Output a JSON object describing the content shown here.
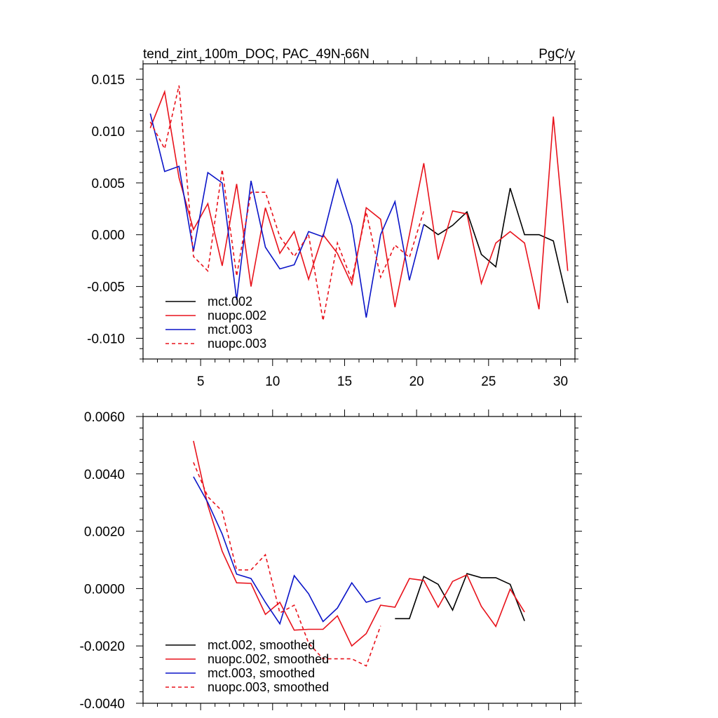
{
  "chart_data": [
    {
      "type": "line",
      "title": "tend_zint_100m_DOC, PAC_49N-66N",
      "units": "PgC/y",
      "xlim": [
        1,
        31
      ],
      "ylim": [
        -0.012,
        0.0165
      ],
      "x_ticks": [
        5,
        10,
        15,
        20,
        25,
        30
      ],
      "x_tick_labels": [
        "5",
        "10",
        "15",
        "20",
        "25",
        "30"
      ],
      "y_ticks": [
        0.015,
        0.01,
        0.005,
        0.0,
        -0.005,
        -0.01
      ],
      "y_tick_labels": [
        "0.015",
        "0.010",
        "0.005",
        "0.000",
        "-0.005",
        "-0.010"
      ],
      "legend_position": "bottom-left",
      "series": [
        {
          "name": "mct.002",
          "color": "#000000",
          "dash": "solid",
          "x_start": 20.5,
          "values": [
            0.001,
            0.0,
            0.0009,
            0.0022,
            -0.0019,
            -0.0031,
            0.0045,
            0.0,
            0.0,
            -0.0006,
            -0.0066
          ]
        },
        {
          "name": "nuopc.002",
          "color": "#e8121b",
          "dash": "solid",
          "x_start": 1.5,
          "values": [
            0.0103,
            0.0138,
            0.0055,
            0.0005,
            0.003,
            -0.003,
            0.0049,
            -0.005,
            0.0026,
            -0.0018,
            0.0003,
            -0.0043,
            0.0,
            -0.0018,
            -0.0048,
            0.0026,
            0.0015,
            -0.007,
            0.0,
            0.0069,
            -0.0024,
            0.0023,
            0.002,
            -0.0047,
            -0.0008,
            0.0003,
            -0.0008,
            -0.0072,
            0.0114,
            -0.0035
          ]
        },
        {
          "name": "mct.003",
          "color": "#0a14c8",
          "dash": "solid",
          "x_start": 1.5,
          "values": [
            0.0117,
            0.0061,
            0.0066,
            -0.0016,
            0.006,
            0.005,
            -0.0063,
            0.0052,
            -0.0012,
            -0.0033,
            -0.0029,
            0.0003,
            -0.0002,
            0.0053,
            0.0009,
            -0.008,
            0.0,
            0.0032,
            -0.0044,
            0.001
          ]
        },
        {
          "name": "nuopc.003",
          "color": "#e8121b",
          "dash": "dashed",
          "x_start": 1.5,
          "values": [
            0.0109,
            0.0083,
            0.0144,
            -0.0021,
            -0.0035,
            0.0063,
            -0.004,
            0.0041,
            0.0041,
            -0.0002,
            -0.0021,
            0.0,
            -0.0083,
            -0.0008,
            -0.0044,
            0.0022,
            -0.0041,
            -0.001,
            -0.0022,
            0.0023
          ]
        }
      ]
    },
    {
      "type": "line",
      "xlim": [
        1,
        31
      ],
      "ylim": [
        -0.004,
        0.006
      ],
      "y_ticks": [
        0.006,
        0.004,
        0.002,
        0.0,
        -0.002,
        -0.004
      ],
      "y_tick_labels": [
        "0.0060",
        "0.0040",
        "0.0020",
        "0.0000",
        "-0.0020",
        "-0.0040"
      ],
      "legend_position": "bottom-left",
      "series": [
        {
          "name": "mct.002, smoothed",
          "color": "#000000",
          "dash": "solid",
          "x_start": 18.5,
          "values": [
            -0.00105,
            -0.00105,
            0.00042,
            0.00015,
            -0.00075,
            0.00052,
            0.00038,
            0.00038,
            0.00015,
            -0.00113
          ]
        },
        {
          "name": "nuopc.002, smoothed",
          "color": "#e8121b",
          "dash": "solid",
          "x_start": 4.5,
          "values": [
            0.00515,
            0.0029,
            0.0013,
            0.0002,
            0.00018,
            -0.0009,
            -0.00048,
            -0.00145,
            -0.00142,
            -0.00142,
            -0.00095,
            -0.002,
            -0.00157,
            -0.00058,
            -0.00065,
            0.00035,
            0.00028,
            -0.00065,
            0.00025,
            0.00048,
            -0.00062,
            -0.00132,
            -2e-05,
            -0.00082
          ]
        },
        {
          "name": "mct.003, smoothed",
          "color": "#0a14c8",
          "dash": "solid",
          "x_start": 4.5,
          "values": [
            0.0039,
            0.003,
            0.0019,
            0.0005,
            0.00035,
            -0.00048,
            -0.00123,
            0.00045,
            -0.00018,
            -0.00115,
            -0.00068,
            0.0002,
            -0.00048,
            -0.00032
          ]
        },
        {
          "name": "nuopc.003, smoothed",
          "color": "#e8121b",
          "dash": "dashed",
          "x_start": 4.5,
          "values": [
            0.0044,
            0.0032,
            0.0027,
            0.00065,
            0.00065,
            0.00118,
            -0.00085,
            -0.00058,
            -0.0019,
            -0.00245,
            -0.00245,
            -0.00245,
            -0.0027,
            -0.0013
          ]
        }
      ]
    }
  ]
}
